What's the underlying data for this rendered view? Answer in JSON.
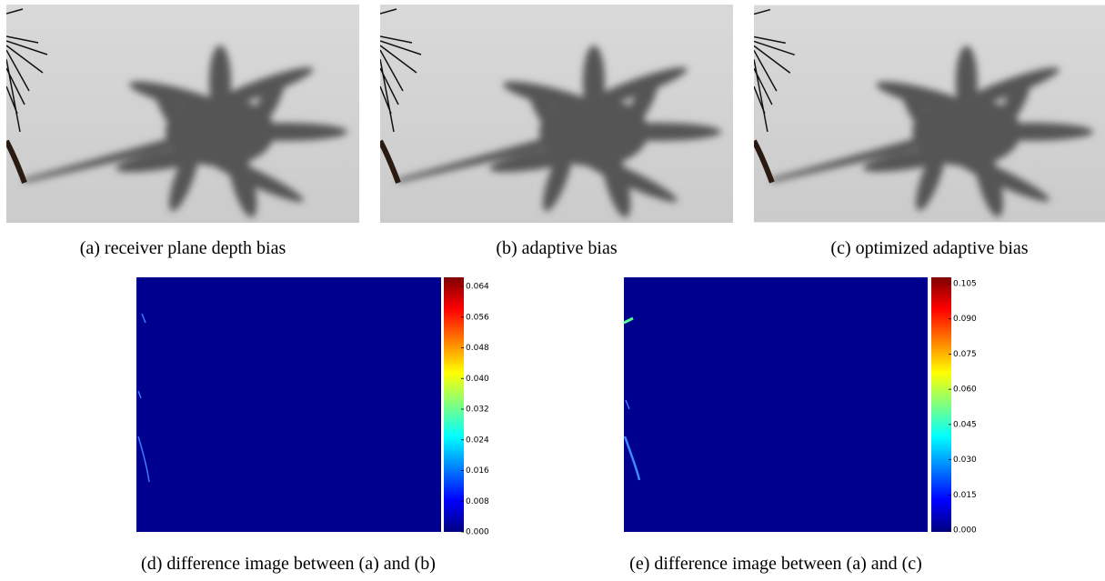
{
  "figures": [
    {
      "caption": "(a) receiver plane depth bias"
    },
    {
      "caption": "(b) adaptive bias"
    },
    {
      "caption": "(c) optimized adaptive bias"
    }
  ],
  "difference_images": [
    {
      "caption": "(d) difference image between (a) and (b)",
      "colorbar_ticks": [
        "0.000",
        "0.008",
        "0.016",
        "0.024",
        "0.032",
        "0.040",
        "0.048",
        "0.056",
        "0.064"
      ]
    },
    {
      "caption": "(e) difference image between (a) and (c)",
      "colorbar_ticks": [
        "0.000",
        "0.015",
        "0.030",
        "0.045",
        "0.060",
        "0.075",
        "0.090",
        "0.105"
      ]
    }
  ]
}
